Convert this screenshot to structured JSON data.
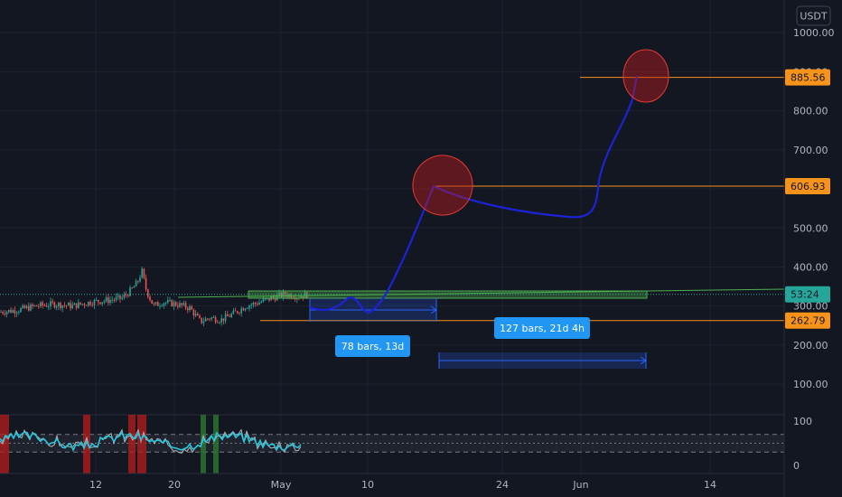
{
  "chart_data": {
    "type": "line",
    "currency": "USDT",
    "y_ticks": [
      "1000.00",
      "900.00",
      "800.00",
      "700.00",
      "600.00",
      "500.00",
      "400.00",
      "300.00",
      "200.00",
      "100.00"
    ],
    "x_ticks": [
      "12",
      "20",
      "May",
      "10",
      "24",
      "Jun",
      "14"
    ],
    "price_tags": [
      {
        "label": "885.56",
        "value": 885.56,
        "color": "#f7931a",
        "text_color": "#131722"
      },
      {
        "label": "606.93",
        "value": 606.93,
        "color": "#f7931a",
        "text_color": "#131722"
      },
      {
        "label": "53:24",
        "value": 330,
        "color": "#26a69a",
        "text_color": "#131722"
      },
      {
        "label": "262.79",
        "value": 262.79,
        "color": "#f7931a",
        "text_color": "#131722"
      }
    ],
    "ranges": [
      {
        "label": "78 bars, 13d"
      },
      {
        "label": "127 bars, 21d 4h"
      }
    ],
    "oscillator_ticks": [
      "100",
      "0"
    ],
    "colors": {
      "background": "#131722",
      "up": "#26a69a",
      "down": "#ef5350",
      "projection": "#1e22d6",
      "level": "#f7931a",
      "range_box": "#2962ff",
      "highlight": "#b71c1c"
    }
  }
}
